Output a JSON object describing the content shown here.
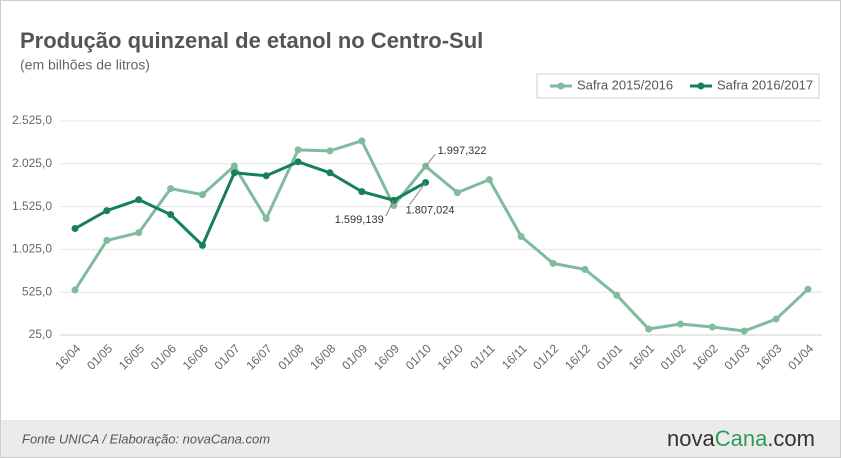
{
  "chart_data": {
    "type": "line",
    "title": "Produção quinzenal de etanol no Centro-Sul",
    "subtitle": "(em bilhões de litros)",
    "source": "Fonte UNICA / Elaboração: novaCana.com",
    "logo": [
      "nova",
      "Cana",
      ".com"
    ],
    "categories": [
      "16/04",
      "01/05",
      "16/05",
      "01/06",
      "16/06",
      "01/07",
      "16/07",
      "01/08",
      "16/08",
      "01/09",
      "16/09",
      "01/10",
      "16/10",
      "01/11",
      "16/11",
      "01/12",
      "16/12",
      "01/01",
      "16/01",
      "01/02",
      "16/02",
      "01/03",
      "16/03",
      "01/04"
    ],
    "series": [
      {
        "name": "Safra 2015/2016",
        "color": "#7fbb9c",
        "values": [
          550,
          1130,
          1220,
          1735,
          1665,
          2000,
          1385,
          2188,
          2176,
          2293,
          1537,
          1997.322,
          1688,
          1840,
          1176,
          862,
          792,
          490,
          95,
          153,
          118,
          72,
          211,
          560
        ],
        "value_labels": [
          null,
          null,
          null,
          null,
          null,
          null,
          null,
          null,
          null,
          null,
          null,
          "1.997,322",
          null,
          null,
          null,
          null,
          null,
          null,
          null,
          null,
          null,
          null,
          null,
          null
        ]
      },
      {
        "name": "Safra 2016/2017",
        "color": "#17805a",
        "values": [
          1269,
          1478,
          1606,
          1432,
          1072,
          1920,
          1885,
          2048,
          1920,
          1700,
          1599.139,
          1807.024,
          null,
          null,
          null,
          null,
          null,
          null,
          null,
          null,
          null,
          null,
          null,
          null
        ],
        "value_labels": [
          null,
          null,
          null,
          null,
          null,
          null,
          null,
          null,
          null,
          null,
          "1.599,139",
          "1.807,024",
          null,
          null,
          null,
          null,
          null,
          null,
          null,
          null,
          null,
          null,
          null,
          null
        ]
      }
    ],
    "ylim": [
      25,
      2525
    ],
    "yticks": [
      {
        "value": 25,
        "label": "25,0"
      },
      {
        "value": 525,
        "label": "525,0"
      },
      {
        "value": 1025,
        "label": "1.025,0"
      },
      {
        "value": 1525,
        "label": "1.525,0"
      },
      {
        "value": 2025,
        "label": "2.025,0"
      },
      {
        "value": 2525,
        "label": "2.525,0"
      }
    ],
    "grid": true,
    "legend": "top-right"
  }
}
